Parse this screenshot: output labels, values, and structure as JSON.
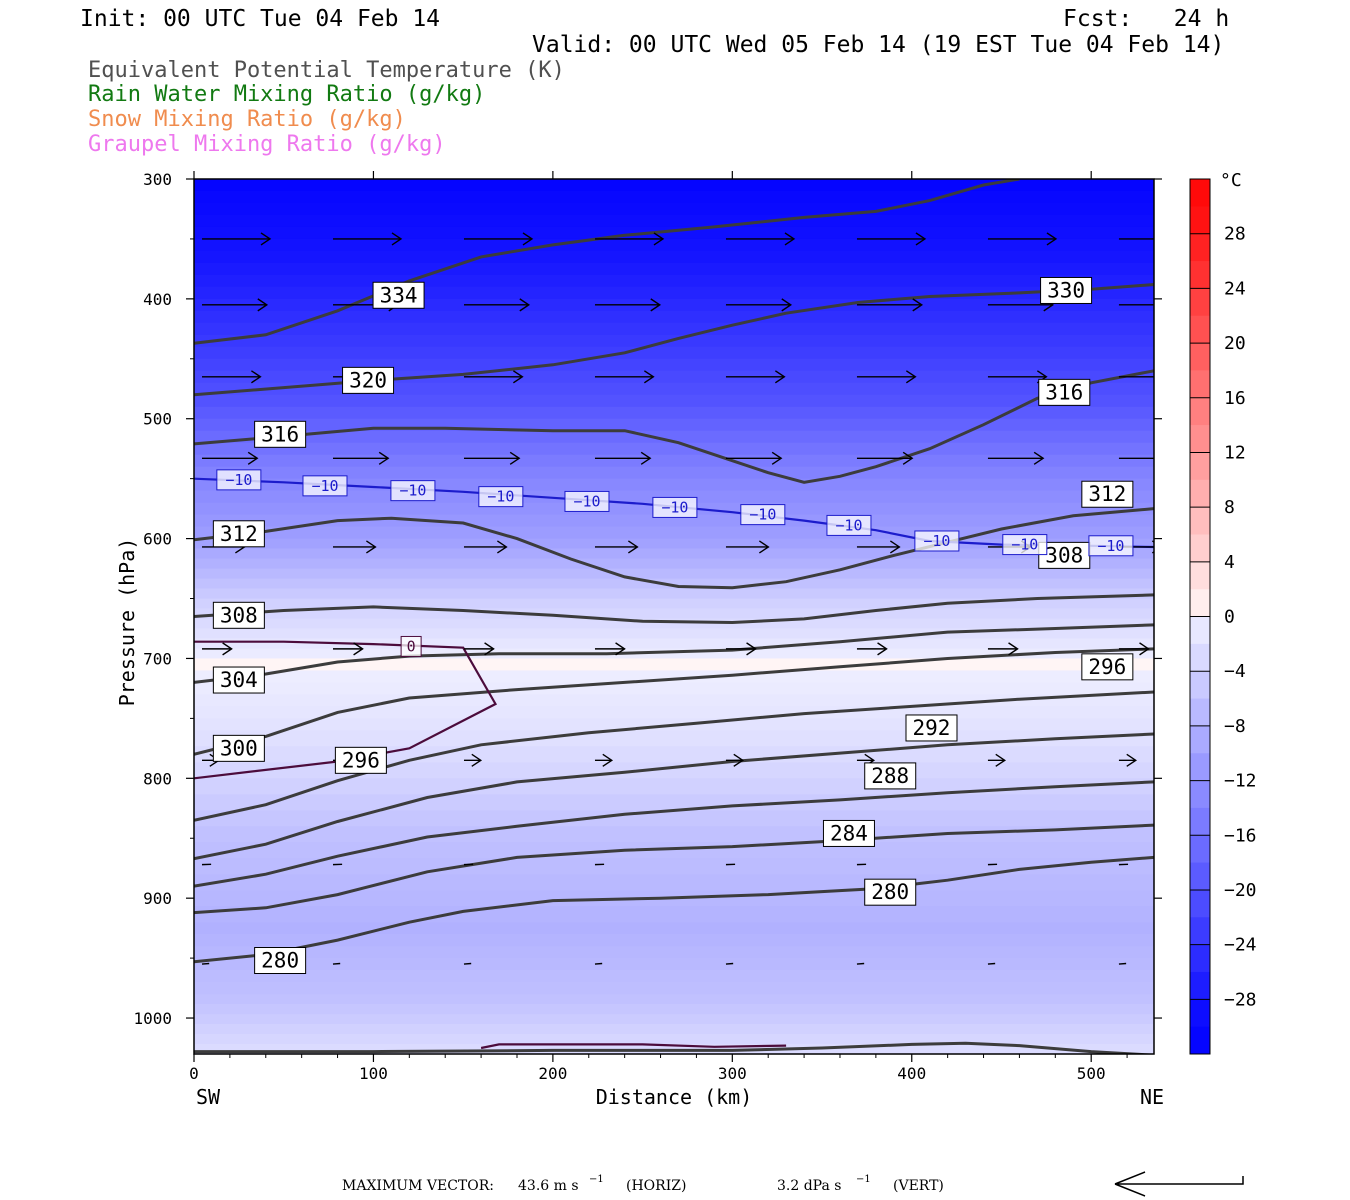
{
  "header": {
    "init": "Init: 00 UTC Tue 04 Feb 14",
    "fcst": "Fcst:   24 h",
    "valid": "Valid: 00 UTC Wed 05 Feb 14 (19 EST Tue 04 Feb 14)"
  },
  "fields": [
    {
      "label": "Equivalent Potential Temperature (K)",
      "color": "#505050"
    },
    {
      "label": "Rain Water Mixing Ratio (g/kg)",
      "color": "#127a12"
    },
    {
      "label": "Snow Mixing Ratio (g/kg)",
      "color": "#f08c4e"
    },
    {
      "label": "Graupel Mixing Ratio (g/kg)",
      "color": "#ee78ee"
    }
  ],
  "chart_data": {
    "type": "cross-section",
    "xlabel": "Distance (km)",
    "ylabel": "Pressure (hPa)",
    "xlim": [
      0,
      535
    ],
    "ylim": [
      1030,
      300
    ],
    "y_scale": "linear",
    "x_ticks": [
      "0",
      "100",
      "200",
      "300",
      "400",
      "500"
    ],
    "y_ticks": [
      "300",
      "400",
      "500",
      "600",
      "700",
      "800",
      "900",
      "1000"
    ],
    "x_end_labels": {
      "left": "SW",
      "right": "NE"
    },
    "colorbar": {
      "unit": "°C",
      "ticks": [
        "28",
        "24",
        "20",
        "16",
        "12",
        "8",
        "4",
        "0",
        "−4",
        "−8",
        "−12",
        "−16",
        "−20",
        "−24",
        "−28"
      ],
      "range": [
        -32,
        32
      ]
    },
    "theta_e_contours": [
      {
        "label": "334",
        "points": [
          [
            0,
            437
          ],
          [
            40,
            430
          ],
          [
            80,
            410
          ],
          [
            120,
            385
          ],
          [
            160,
            365
          ],
          [
            200,
            355
          ],
          [
            240,
            347
          ],
          [
            290,
            340
          ],
          [
            340,
            332
          ],
          [
            380,
            327
          ],
          [
            410,
            318
          ],
          [
            440,
            305
          ],
          [
            460,
            300
          ]
        ]
      },
      {
        "label": "330",
        "points": [
          [
            0,
            480
          ],
          [
            50,
            474
          ],
          [
            100,
            468
          ],
          [
            150,
            463
          ],
          [
            200,
            455
          ],
          [
            240,
            445
          ],
          [
            270,
            433
          ],
          [
            300,
            422
          ],
          [
            330,
            412
          ],
          [
            370,
            403
          ],
          [
            410,
            398
          ],
          [
            460,
            395
          ],
          [
            500,
            392
          ],
          [
            535,
            388
          ]
        ]
      },
      {
        "label": "320",
        "points": [
          [
            0,
            521
          ],
          [
            40,
            516
          ],
          [
            100,
            508
          ],
          [
            140,
            508
          ],
          [
            200,
            510
          ],
          [
            240,
            510
          ],
          [
            270,
            520
          ],
          [
            300,
            535
          ],
          [
            320,
            545
          ],
          [
            340,
            553
          ],
          [
            360,
            548
          ],
          [
            380,
            540
          ],
          [
            410,
            525
          ],
          [
            440,
            505
          ],
          [
            470,
            483
          ],
          [
            500,
            470
          ],
          [
            535,
            460
          ]
        ]
      },
      {
        "label": "316",
        "points": [
          [
            0,
            601
          ],
          [
            40,
            594
          ],
          [
            80,
            585
          ],
          [
            110,
            583
          ],
          [
            150,
            587
          ],
          [
            180,
            600
          ],
          [
            210,
            617
          ],
          [
            240,
            632
          ],
          [
            270,
            640
          ],
          [
            300,
            641
          ],
          [
            330,
            636
          ],
          [
            360,
            626
          ],
          [
            390,
            614
          ],
          [
            420,
            603
          ],
          [
            450,
            592
          ],
          [
            490,
            581
          ],
          [
            535,
            575
          ]
        ]
      },
      {
        "label": "312",
        "points": [
          [
            0,
            665
          ],
          [
            50,
            660
          ],
          [
            100,
            657
          ],
          [
            150,
            660
          ],
          [
            200,
            664
          ],
          [
            250,
            669
          ],
          [
            300,
            670
          ],
          [
            340,
            667
          ],
          [
            380,
            660
          ],
          [
            420,
            654
          ],
          [
            470,
            650
          ],
          [
            535,
            647
          ]
        ]
      },
      {
        "label": "308",
        "points": [
          [
            0,
            720
          ],
          [
            40,
            713
          ],
          [
            80,
            703
          ],
          [
            120,
            698
          ],
          [
            170,
            696
          ],
          [
            230,
            696
          ],
          [
            300,
            693
          ],
          [
            360,
            686
          ],
          [
            420,
            678
          ],
          [
            480,
            675
          ],
          [
            535,
            672
          ]
        ]
      },
      {
        "label": "304",
        "points": [
          [
            0,
            780
          ],
          [
            40,
            765
          ],
          [
            80,
            745
          ],
          [
            120,
            733
          ],
          [
            180,
            726
          ],
          [
            240,
            720
          ],
          [
            300,
            714
          ],
          [
            360,
            707
          ],
          [
            420,
            700
          ],
          [
            480,
            695
          ],
          [
            535,
            692
          ]
        ]
      },
      {
        "label": "300",
        "points": [
          [
            0,
            835
          ],
          [
            40,
            822
          ],
          [
            80,
            802
          ],
          [
            120,
            785
          ],
          [
            160,
            772
          ],
          [
            220,
            762
          ],
          [
            280,
            754
          ],
          [
            340,
            746
          ],
          [
            400,
            740
          ],
          [
            460,
            734
          ],
          [
            535,
            728
          ]
        ]
      },
      {
        "label": "296",
        "points": [
          [
            0,
            867
          ],
          [
            40,
            855
          ],
          [
            80,
            836
          ],
          [
            130,
            816
          ],
          [
            180,
            803
          ],
          [
            240,
            795
          ],
          [
            300,
            786
          ],
          [
            360,
            779
          ],
          [
            420,
            772
          ],
          [
            480,
            767
          ],
          [
            535,
            763
          ]
        ]
      },
      {
        "label": "292",
        "points": [
          [
            0,
            890
          ],
          [
            40,
            880
          ],
          [
            80,
            865
          ],
          [
            130,
            849
          ],
          [
            180,
            840
          ],
          [
            240,
            830
          ],
          [
            300,
            823
          ],
          [
            360,
            818
          ],
          [
            420,
            812
          ],
          [
            480,
            807
          ],
          [
            535,
            803
          ]
        ]
      },
      {
        "label": "288",
        "points": [
          [
            0,
            912
          ],
          [
            40,
            908
          ],
          [
            80,
            897
          ],
          [
            130,
            878
          ],
          [
            180,
            866
          ],
          [
            240,
            860
          ],
          [
            300,
            857
          ],
          [
            360,
            852
          ],
          [
            420,
            846
          ],
          [
            480,
            843
          ],
          [
            535,
            839
          ]
        ]
      },
      {
        "label": "284",
        "points": [
          [
            0,
            953
          ],
          [
            40,
            947
          ],
          [
            80,
            935
          ],
          [
            120,
            920
          ],
          [
            150,
            911
          ],
          [
            200,
            902
          ],
          [
            260,
            900
          ],
          [
            320,
            897
          ],
          [
            380,
            892
          ],
          [
            420,
            885
          ],
          [
            460,
            876
          ],
          [
            500,
            870
          ],
          [
            535,
            866
          ]
        ]
      },
      {
        "label": "280",
        "points": [
          [
            0,
            1028
          ],
          [
            100,
            1028
          ],
          [
            200,
            1027
          ],
          [
            300,
            1027
          ],
          [
            350,
            1025
          ],
          [
            400,
            1022
          ],
          [
            430,
            1021
          ],
          [
            460,
            1023
          ],
          [
            500,
            1028
          ],
          [
            535,
            1031
          ]
        ]
      }
    ],
    "theta_e_labels": [
      {
        "text": "334",
        "x": 114,
        "p": 397
      },
      {
        "text": "330",
        "x": 486,
        "p": 393
      },
      {
        "text": "320",
        "x": 97,
        "p": 468
      },
      {
        "text": "316",
        "x": 48,
        "p": 513
      },
      {
        "text": "316",
        "x": 485,
        "p": 478
      },
      {
        "text": "312",
        "x": 25,
        "p": 596
      },
      {
        "text": "312",
        "x": 509,
        "p": 563
      },
      {
        "text": "308",
        "x": 25,
        "p": 664
      },
      {
        "text": "308",
        "x": 485,
        "p": 614
      },
      {
        "text": "304",
        "x": 25,
        "p": 718
      },
      {
        "text": "300",
        "x": 25,
        "p": 775
      },
      {
        "text": "296",
        "x": 93,
        "p": 785
      },
      {
        "text": "296",
        "x": 509,
        "p": 707
      },
      {
        "text": "292",
        "x": 411,
        "p": 758
      },
      {
        "text": "288",
        "x": 388,
        "p": 798
      },
      {
        "text": "284",
        "x": 365,
        "p": 846
      },
      {
        "text": "280",
        "x": 388,
        "p": 895
      },
      {
        "text": "280",
        "x": 48,
        "p": 952
      }
    ],
    "isotherms": [
      {
        "label": "-10",
        "color": "#1c1ccc",
        "points": [
          [
            0,
            550
          ],
          [
            50,
            553
          ],
          [
            100,
            557
          ],
          [
            150,
            561
          ],
          [
            200,
            566
          ],
          [
            250,
            571
          ],
          [
            300,
            578
          ],
          [
            340,
            585
          ],
          [
            380,
            593
          ],
          [
            410,
            602
          ],
          [
            450,
            605
          ],
          [
            500,
            606
          ],
          [
            535,
            607
          ]
        ]
      },
      {
        "label": "0",
        "color": "#4c0c3c",
        "points": [
          [
            0,
            800
          ],
          [
            80,
            786
          ],
          [
            120,
            775
          ],
          [
            168,
            738
          ],
          [
            150,
            691
          ],
          [
            100,
            688
          ],
          [
            50,
            686
          ],
          [
            0,
            686
          ]
        ]
      },
      {
        "label": "0",
        "color": "#4c0c3c",
        "points": [
          [
            160,
            1025
          ],
          [
            170,
            1022
          ],
          [
            250,
            1022
          ],
          [
            290,
            1024
          ],
          [
            330,
            1023
          ]
        ]
      }
    ],
    "isotherm_labels": [
      {
        "text": "−10",
        "x": 25,
        "p": 551
      },
      {
        "text": "−10",
        "x": 73,
        "p": 556
      },
      {
        "text": "−10",
        "x": 122,
        "p": 560
      },
      {
        "text": "−10",
        "x": 171,
        "p": 565
      },
      {
        "text": "−10",
        "x": 219,
        "p": 569
      },
      {
        "text": "−10",
        "x": 268,
        "p": 574
      },
      {
        "text": "−10",
        "x": 317,
        "p": 580
      },
      {
        "text": "−10",
        "x": 365,
        "p": 589
      },
      {
        "text": "−10",
        "x": 414,
        "p": 602
      },
      {
        "text": "−10",
        "x": 463,
        "p": 605
      },
      {
        "text": "−10",
        "x": 511,
        "p": 606
      },
      {
        "text": "0",
        "x": 121,
        "p": 690
      }
    ],
    "wind_vectors": [
      {
        "p": 350,
        "u": 1.0,
        "w": 0.0
      },
      {
        "p": 405,
        "u": 0.95,
        "w": 0.0
      },
      {
        "p": 465,
        "u": 0.85,
        "w": 0.0
      },
      {
        "p": 533,
        "u": 0.8,
        "w": 0.0
      },
      {
        "p": 607,
        "u": 0.6,
        "w": 0.0
      },
      {
        "p": 692,
        "u": 0.4,
        "w": 0.0
      },
      {
        "p": 785,
        "u": 0.2,
        "w": 0.0
      },
      {
        "p": 872,
        "u": 0.08,
        "w": 0.05
      },
      {
        "p": 955,
        "u": 0.05,
        "w": 0.1
      }
    ],
    "temperature_bands": [
      {
        "p": 300,
        "t": -30
      },
      {
        "p": 360,
        "t": -28
      },
      {
        "p": 420,
        "t": -24
      },
      {
        "p": 480,
        "t": -20
      },
      {
        "p": 540,
        "t": -14
      },
      {
        "p": 600,
        "t": -10
      },
      {
        "p": 650,
        "t": -4
      },
      {
        "p": 700,
        "t": 0
      },
      {
        "p": 760,
        "t": -2
      },
      {
        "p": 840,
        "t": -6
      },
      {
        "p": 920,
        "t": -8
      },
      {
        "p": 980,
        "t": -6
      },
      {
        "p": 1030,
        "t": -2
      }
    ]
  },
  "footer": {
    "max_vector": "MAXIMUM VECTOR:",
    "horiz_value": "43.6 m s",
    "horiz_exp": "−1",
    "horiz_unit": "(HORIZ)",
    "vert_value": "3.2 dPa s",
    "vert_exp": "−1",
    "vert_unit": "(VERT)"
  }
}
